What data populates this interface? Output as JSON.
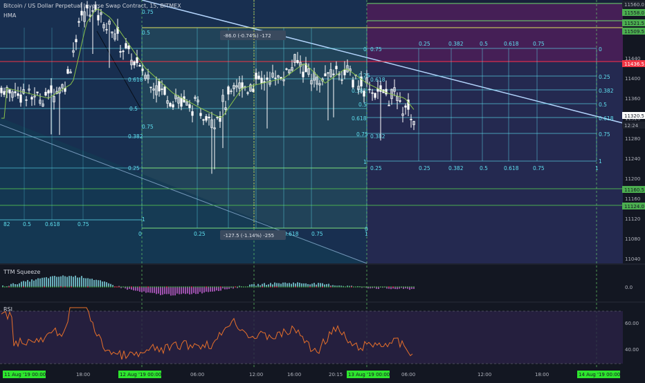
{
  "header": {
    "title": "Bitcoin / US Dollar Perpetual Inverse Swap Contract, 15, BITMEX",
    "indicator": "HMA"
  },
  "panes": {
    "squeeze": "TTM Squeeze",
    "rsi": "RSI"
  },
  "colors": {
    "bg": "#131722",
    "candle": "#ffffff",
    "hma": "#8bc34a",
    "fib": "#5fe0f0",
    "green_line": "#4caf50",
    "red_line": "#f23645",
    "rsi_line": "#e8702a",
    "trend": "#b3d4fc"
  },
  "chart_data": {
    "type": "candlestick",
    "y_ticks": [
      11440,
      11400,
      11360,
      11320,
      11280,
      11240,
      11200,
      11160,
      11120,
      11080,
      11040
    ],
    "price_labels": [
      {
        "value": "11560.0",
        "kind": "dark"
      },
      {
        "value": "11558.0",
        "kind": "green"
      },
      {
        "value": "11521.5",
        "kind": "green"
      },
      {
        "value": "11509.5",
        "kind": "green"
      },
      {
        "value": "11436.5",
        "kind": "red"
      },
      {
        "value": "11320.5",
        "kind": "white"
      },
      {
        "value": "12:24",
        "kind": "dark"
      },
      {
        "value": "11160.5",
        "kind": "green"
      },
      {
        "value": "11124.0",
        "kind": "green"
      }
    ],
    "x_ticks": [
      {
        "label": "11 Aug '19  00:00",
        "highlight": true
      },
      {
        "label": "18:00",
        "highlight": false
      },
      {
        "label": "12 Aug '19  00:00",
        "highlight": true
      },
      {
        "label": "06:00",
        "highlight": false
      },
      {
        "label": "12:00",
        "highlight": false
      },
      {
        "label": "16:00",
        "highlight": false
      },
      {
        "label": "20:15",
        "highlight": false
      },
      {
        "label": "13 Aug '19  00:00",
        "highlight": true
      },
      {
        "label": "06:00",
        "highlight": false
      },
      {
        "label": "12:00",
        "highlight": false
      },
      {
        "label": "18:00",
        "highlight": false
      },
      {
        "label": "14 Aug '19  00:00",
        "highlight": true
      }
    ],
    "measure_top": "-86.0 (-0.74%) -172",
    "measure_bottom": "-127.5 (-1.14%) -255",
    "squeeze_ticks": [
      "0.0"
    ],
    "rsi_ticks": [
      "60.00",
      "40.00"
    ]
  }
}
